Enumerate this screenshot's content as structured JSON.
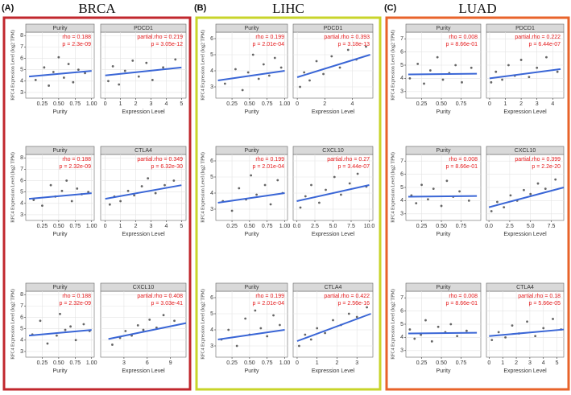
{
  "panels": [
    {
      "label": "(A)",
      "title": "BRCA",
      "color": "#c1272d"
    },
    {
      "label": "(B)",
      "title": "LIHC",
      "color": "#c8d42a"
    },
    {
      "label": "(C)",
      "title": "LUAD",
      "color": "#e8632a"
    }
  ],
  "style": {
    "point_color": "#333333",
    "fit_color": "#3a66d6",
    "strip_color": "#d9d9d9",
    "annotation_color": "#e41a1c",
    "grid": true
  },
  "chart_data": [
    {
      "type": "scatter",
      "title": "Purity",
      "annotations": [
        "rho = 0.188",
        "p = 2.3e-09"
      ],
      "x_label": "Purity",
      "y_label": "RFC4 Expression Level (log2 TPM)",
      "xlim": [
        0,
        1.04
      ],
      "ylim": [
        2.5,
        8.3
      ],
      "xticks": [
        0.25,
        {
          "value": 0.5,
          "label": "0.50"
        },
        0.75,
        {
          "value": 1,
          "label": "1.00"
        }
      ],
      "yticks": [
        3,
        4,
        5,
        6,
        7,
        8
      ],
      "x": [
        0.15,
        0.28,
        0.35,
        0.42,
        0.5,
        0.58,
        0.65,
        0.72,
        0.8,
        0.9
      ],
      "values": [
        4.1,
        5.2,
        3.6,
        4.8,
        6.1,
        4.3,
        5.5,
        3.9,
        5.0,
        4.7
      ],
      "fit": {
        "x": [
          0.05,
          1.0
        ],
        "values": [
          4.4,
          4.9
        ]
      }
    },
    {
      "type": "scatter",
      "title": "PDCD1",
      "annotations": [
        "partial.rho = 0.219",
        "p = 3.05e-12"
      ],
      "x_label": "Expression Level",
      "xlim": [
        -0.3,
        5.3
      ],
      "ylim": [
        2.5,
        8.3
      ],
      "xticks": [
        0,
        1,
        2,
        3,
        4,
        5
      ],
      "yticks": [
        3,
        4,
        5,
        6,
        7,
        8
      ],
      "x": [
        0.2,
        0.5,
        0.9,
        1.3,
        1.8,
        2.2,
        2.7,
        3.1,
        3.8,
        4.6
      ],
      "values": [
        4.0,
        5.3,
        3.7,
        4.9,
        5.8,
        4.4,
        5.6,
        4.1,
        5.2,
        5.9
      ],
      "fit": {
        "x": [
          0,
          5
        ],
        "values": [
          4.5,
          5.2
        ]
      }
    },
    {
      "type": "scatter",
      "title": "Purity",
      "annotations": [
        "rho = 0.188",
        "p = 2.32e-09"
      ],
      "x_label": "Purity",
      "y_label": "RFC4 Expression Level (log2 TPM)",
      "xlim": [
        0,
        1.04
      ],
      "ylim": [
        2.5,
        8.3
      ],
      "xticks": [
        0.25,
        {
          "value": 0.5,
          "label": "0.50"
        },
        0.75,
        {
          "value": 1,
          "label": "1.00"
        }
      ],
      "yticks": [
        3,
        4,
        5,
        6,
        7,
        8
      ],
      "x": [
        0.12,
        0.25,
        0.38,
        0.45,
        0.55,
        0.62,
        0.7,
        0.78,
        0.85,
        0.95
      ],
      "values": [
        4.3,
        3.8,
        5.6,
        4.6,
        5.1,
        6.0,
        4.2,
        5.3,
        4.8,
        5.0
      ],
      "fit": {
        "x": [
          0.05,
          1.0
        ],
        "values": [
          4.4,
          4.9
        ]
      }
    },
    {
      "type": "scatter",
      "title": "CTLA4",
      "annotations": [
        "partial.rho = 0.349",
        "p = 6.32e-30"
      ],
      "x_label": "Expression Level",
      "xlim": [
        -0.3,
        5.3
      ],
      "ylim": [
        2.5,
        8.3
      ],
      "xticks": [
        0,
        1,
        2,
        3,
        4,
        5
      ],
      "yticks": [
        3,
        4,
        5,
        6,
        7,
        8
      ],
      "x": [
        0.3,
        0.6,
        1.0,
        1.5,
        1.9,
        2.4,
        2.8,
        3.3,
        3.9,
        4.5
      ],
      "values": [
        3.9,
        4.6,
        4.2,
        5.1,
        4.7,
        5.5,
        6.2,
        4.9,
        5.6,
        6.0
      ],
      "fit": {
        "x": [
          0,
          5
        ],
        "values": [
          4.4,
          5.6
        ]
      }
    },
    {
      "type": "scatter",
      "title": "Purity",
      "annotations": [
        "rho = 0.188",
        "p = 2.32e-09"
      ],
      "x_label": "Purity",
      "y_label": "RFC4 Expression Level (log2 TPM)",
      "xlim": [
        0,
        1.04
      ],
      "ylim": [
        2.5,
        8.3
      ],
      "xticks": [
        0.25,
        {
          "value": 0.5,
          "label": "0.50"
        },
        0.75,
        {
          "value": 1,
          "label": "1.00"
        }
      ],
      "yticks": [
        3,
        4,
        5,
        6,
        7,
        8
      ],
      "x": [
        0.1,
        0.22,
        0.33,
        0.47,
        0.52,
        0.6,
        0.68,
        0.76,
        0.88,
        0.97
      ],
      "values": [
        4.5,
        5.7,
        3.7,
        4.4,
        6.3,
        4.9,
        5.2,
        4.0,
        5.4,
        4.8
      ],
      "fit": {
        "x": [
          0.05,
          1.0
        ],
        "values": [
          4.4,
          4.9
        ]
      }
    },
    {
      "type": "scatter",
      "title": "CXCL10",
      "annotations": [
        "partial.rho = 0.408",
        "p = 3.03e-41"
      ],
      "x_label": "Expression Level",
      "xlim": [
        0,
        11
      ],
      "ylim": [
        2.5,
        8.3
      ],
      "xticks": [
        3,
        6,
        9
      ],
      "yticks": [
        3,
        4,
        5,
        6,
        7,
        8
      ],
      "x": [
        1.5,
        2.5,
        3.2,
        4,
        4.8,
        5.5,
        6.3,
        7.2,
        8.1,
        9.5
      ],
      "values": [
        3.6,
        4.2,
        4.8,
        4.4,
        5.3,
        4.9,
        5.8,
        5.1,
        6.2,
        5.7
      ],
      "fit": {
        "x": [
          1,
          11
        ],
        "values": [
          4.1,
          5.5
        ]
      }
    },
    {
      "type": "scatter",
      "title": "Purity",
      "annotations": [
        "rho = 0.199",
        "p = 2.01e-04"
      ],
      "x_label": "Purity",
      "y_label": "RFC4 Expression Level (log2 TPM)",
      "xlim": [
        0.02,
        1.04
      ],
      "ylim": [
        2.3,
        6.4
      ],
      "xticks": [
        0.25,
        {
          "value": 0.5,
          "label": "0.50"
        },
        0.75,
        {
          "value": 1,
          "label": "1.00"
        }
      ],
      "yticks": [
        3,
        4,
        5,
        6
      ],
      "x": [
        0.15,
        0.3,
        0.4,
        0.48,
        0.55,
        0.63,
        0.7,
        0.78,
        0.86,
        0.95
      ],
      "values": [
        3.2,
        4.1,
        2.8,
        3.9,
        5.0,
        3.5,
        4.4,
        3.7,
        4.8,
        4.2
      ],
      "fit": {
        "x": [
          0.05,
          1.0
        ],
        "values": [
          3.4,
          4.0
        ]
      }
    },
    {
      "type": "scatter",
      "title": "PDCD1",
      "annotations": [
        "partial.rho = 0.393",
        "p = 3.18e-13"
      ],
      "x_label": "Expression Level",
      "xlim": [
        -0.3,
        5.5
      ],
      "ylim": [
        2.3,
        6.4
      ],
      "xticks": [
        0,
        2,
        4
      ],
      "yticks": [
        3,
        4,
        5,
        6
      ],
      "x": [
        0.2,
        0.5,
        0.9,
        1.4,
        1.9,
        2.5,
        3.1,
        3.7,
        4.3,
        5.0
      ],
      "values": [
        3.0,
        3.9,
        3.4,
        4.6,
        3.8,
        4.9,
        4.2,
        5.3,
        4.7,
        5.5
      ],
      "fit": {
        "x": [
          0,
          5.3
        ],
        "values": [
          3.6,
          5.0
        ]
      }
    },
    {
      "type": "scatter",
      "title": "Purity",
      "annotations": [
        "rho = 0.199",
        "p = 2.01e-04"
      ],
      "x_label": "Purity",
      "y_label": "RFC4 Expression Level (log2 TPM)",
      "xlim": [
        0.02,
        1.04
      ],
      "ylim": [
        2.3,
        6.4
      ],
      "xticks": [
        0.25,
        {
          "value": 0.5,
          "label": "0.50"
        },
        0.75,
        {
          "value": 1,
          "label": "1.00"
        }
      ],
      "yticks": [
        3,
        4,
        5,
        6
      ],
      "x": [
        0.12,
        0.25,
        0.35,
        0.45,
        0.52,
        0.6,
        0.72,
        0.8,
        0.9,
        0.97
      ],
      "values": [
        3.5,
        2.9,
        4.3,
        3.6,
        5.1,
        3.9,
        4.5,
        3.3,
        4.8,
        4.0
      ],
      "fit": {
        "x": [
          0.05,
          1.0
        ],
        "values": [
          3.4,
          4.0
        ]
      }
    },
    {
      "type": "scatter",
      "title": "CXCL10",
      "annotations": [
        "partial.rho = 0.27",
        "p = 3.44e-07"
      ],
      "x_label": "Expression Level",
      "xlim": [
        -0.5,
        10.5
      ],
      "ylim": [
        2.3,
        6.4
      ],
      "xticks": [
        {
          "value": 0,
          "label": "0.0"
        },
        2.5,
        {
          "value": 5,
          "label": "5.0"
        },
        7.5,
        {
          "value": 10,
          "label": "10.0"
        }
      ],
      "yticks": [
        3,
        4,
        5,
        6
      ],
      "x": [
        0.5,
        1.2,
        2.0,
        3.1,
        4.0,
        5.2,
        6.1,
        7.3,
        8.4,
        9.6
      ],
      "values": [
        3.1,
        3.8,
        4.5,
        3.4,
        4.2,
        5.0,
        3.9,
        4.6,
        5.2,
        4.4
      ],
      "fit": {
        "x": [
          0,
          10
        ],
        "values": [
          3.5,
          4.5
        ]
      }
    },
    {
      "type": "scatter",
      "title": "Purity",
      "annotations": [
        "rho = 0.199",
        "p = 2.01e-04"
      ],
      "x_label": "Purity",
      "y_label": "RFC4 Expression Level (log2 TPM)",
      "xlim": [
        0.02,
        1.04
      ],
      "ylim": [
        2.3,
        6.4
      ],
      "xticks": [
        0.25,
        {
          "value": 0.5,
          "label": "0.50"
        },
        0.75,
        {
          "value": 1,
          "label": "1.00"
        }
      ],
      "yticks": [
        3,
        4,
        5,
        6
      ],
      "x": [
        0.1,
        0.2,
        0.32,
        0.44,
        0.5,
        0.58,
        0.66,
        0.75,
        0.84,
        0.93
      ],
      "values": [
        3.4,
        4.0,
        3.0,
        4.7,
        3.7,
        5.2,
        4.1,
        3.6,
        4.9,
        4.3
      ],
      "fit": {
        "x": [
          0.05,
          1.0
        ],
        "values": [
          3.4,
          4.0
        ]
      }
    },
    {
      "type": "scatter",
      "title": "CTLA4",
      "annotations": [
        "partial.rho = 0.422",
        "p = 2.56e-16"
      ],
      "x_label": "Expression Level",
      "xlim": [
        -0.2,
        3.8
      ],
      "ylim": [
        2.3,
        6.4
      ],
      "xticks": [
        0,
        1,
        2,
        3
      ],
      "yticks": [
        3,
        4,
        5,
        6
      ],
      "x": [
        0.1,
        0.4,
        0.7,
        1.0,
        1.4,
        1.8,
        2.2,
        2.6,
        3.0,
        3.5
      ],
      "values": [
        3.0,
        3.7,
        3.4,
        4.1,
        3.8,
        4.6,
        4.3,
        5.0,
        4.8,
        5.4
      ],
      "fit": {
        "x": [
          0,
          3.7
        ],
        "values": [
          3.3,
          5.0
        ]
      }
    },
    {
      "type": "scatter",
      "title": "Purity",
      "annotations": [
        "rho = 0.008",
        "p = 8.66e-01"
      ],
      "x_label": "Purity",
      "y_label": "RFC4 Expression Level (log2 TPM)",
      "xlim": [
        0.05,
        1.0
      ],
      "ylim": [
        2.5,
        7.5
      ],
      "xticks": [
        0.25,
        {
          "value": 0.5,
          "label": "0.50"
        },
        0.75
      ],
      "yticks": [
        3,
        4,
        5,
        6,
        7
      ],
      "x": [
        0.1,
        0.2,
        0.28,
        0.36,
        0.45,
        0.52,
        0.6,
        0.68,
        0.76,
        0.88
      ],
      "values": [
        4.0,
        5.1,
        3.6,
        4.6,
        5.6,
        3.9,
        4.4,
        5.0,
        3.7,
        4.8
      ],
      "fit": {
        "x": [
          0.08,
          0.95
        ],
        "values": [
          4.3,
          4.35
        ]
      }
    },
    {
      "type": "scatter",
      "title": "PDCD1",
      "annotations": [
        "partial.rho = 0.222",
        "p = 6.44e-07"
      ],
      "x_label": "Expression Level",
      "xlim": [
        -0.2,
        4.7
      ],
      "ylim": [
        2.5,
        7.5
      ],
      "xticks": [
        0,
        1,
        2,
        3,
        4
      ],
      "yticks": [
        3,
        4,
        5,
        6,
        7
      ],
      "x": [
        0.1,
        0.4,
        0.8,
        1.2,
        1.6,
        2.0,
        2.5,
        3.0,
        3.6,
        4.3
      ],
      "values": [
        3.7,
        4.5,
        3.9,
        5.0,
        4.2,
        5.4,
        4.1,
        4.8,
        5.6,
        4.5
      ],
      "fit": {
        "x": [
          0,
          4.5
        ],
        "values": [
          4.0,
          4.7
        ]
      }
    },
    {
      "type": "scatter",
      "title": "Purity",
      "annotations": [
        "rho = 0.008",
        "p = 8.66e-01"
      ],
      "x_label": "Purity",
      "y_label": "RFC4 Expression Level (log2 TPM)",
      "xlim": [
        0.05,
        1.0
      ],
      "ylim": [
        2.5,
        7.5
      ],
      "xticks": [
        0.25,
        {
          "value": 0.5,
          "label": "0.50"
        },
        0.75
      ],
      "yticks": [
        3,
        4,
        5,
        6,
        7
      ],
      "x": [
        0.12,
        0.18,
        0.25,
        0.33,
        0.4,
        0.5,
        0.57,
        0.65,
        0.73,
        0.85
      ],
      "values": [
        4.4,
        3.8,
        5.2,
        4.1,
        4.9,
        3.6,
        5.5,
        4.3,
        4.7,
        4.0
      ],
      "fit": {
        "x": [
          0.08,
          0.95
        ],
        "values": [
          4.3,
          4.35
        ]
      }
    },
    {
      "type": "scatter",
      "title": "CXCL10",
      "annotations": [
        "partial.rho = 0.399",
        "p = 2.2e-20"
      ],
      "x_label": "Expression Level",
      "xlim": [
        -0.3,
        9
      ],
      "ylim": [
        2.5,
        7.5
      ],
      "xticks": [
        {
          "value": 0,
          "label": "0.0"
        },
        2.5,
        {
          "value": 5,
          "label": "5.0"
        },
        7.5
      ],
      "yticks": [
        3,
        4,
        5,
        6,
        7
      ],
      "x": [
        0.3,
        1.0,
        1.8,
        2.6,
        3.4,
        4.2,
        5.0,
        5.9,
        6.8,
        8.0
      ],
      "values": [
        3.2,
        3.9,
        3.5,
        4.4,
        4.0,
        4.8,
        4.5,
        5.3,
        4.9,
        5.6
      ],
      "fit": {
        "x": [
          0,
          9
        ],
        "values": [
          3.5,
          5.0
        ]
      }
    },
    {
      "type": "scatter",
      "title": "Purity",
      "annotations": [
        "rho = 0.008",
        "p = 8.66e-01"
      ],
      "x_label": "Purity",
      "y_label": "RFC4 Expression Level (log2 TPM)",
      "xlim": [
        0.05,
        1.0
      ],
      "ylim": [
        2.5,
        7.5
      ],
      "xticks": [
        0.25,
        {
          "value": 0.5,
          "label": "0.50"
        },
        0.75
      ],
      "yticks": [
        3,
        4,
        5,
        6,
        7
      ],
      "x": [
        0.1,
        0.16,
        0.24,
        0.3,
        0.38,
        0.46,
        0.55,
        0.62,
        0.7,
        0.82
      ],
      "values": [
        4.6,
        3.9,
        4.2,
        5.3,
        3.7,
        4.8,
        4.4,
        5.0,
        4.1,
        4.5
      ],
      "fit": {
        "x": [
          0.08,
          0.95
        ],
        "values": [
          4.3,
          4.35
        ]
      }
    },
    {
      "type": "scatter",
      "title": "CTLA4",
      "annotations": [
        "partial.rho = 0.18",
        "p = 5.66e-05"
      ],
      "x_label": "Expression Level",
      "xlim": [
        -0.2,
        5.5
      ],
      "ylim": [
        2.5,
        7.5
      ],
      "xticks": [
        0,
        1,
        2,
        3,
        4,
        5
      ],
      "yticks": [
        3,
        4,
        5,
        6,
        7
      ],
      "x": [
        0.2,
        0.7,
        1.2,
        1.7,
        2.2,
        2.8,
        3.4,
        4.0,
        4.7,
        5.3
      ],
      "values": [
        3.8,
        4.4,
        4.0,
        4.9,
        4.3,
        5.2,
        4.1,
        4.7,
        5.4,
        4.6
      ],
      "fit": {
        "x": [
          0,
          5.5
        ],
        "values": [
          4.1,
          4.6
        ]
      }
    }
  ]
}
